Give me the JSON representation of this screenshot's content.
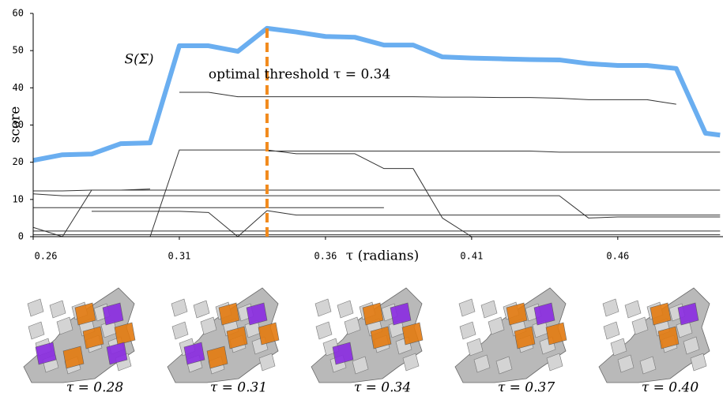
{
  "chart_data": {
    "type": "line",
    "x": [
      0.26,
      0.27,
      0.28,
      0.29,
      0.3,
      0.31,
      0.32,
      0.33,
      0.34,
      0.35,
      0.36,
      0.37,
      0.38,
      0.39,
      0.4,
      0.41,
      0.42,
      0.43,
      0.44,
      0.45,
      0.46,
      0.47,
      0.48,
      0.49,
      0.495
    ],
    "xlim": [
      0.26,
      0.496
    ],
    "xticks": [
      0.26,
      0.31,
      0.36,
      0.41,
      0.46
    ],
    "ylim": [
      0,
      60
    ],
    "yticks": [
      0,
      10,
      20,
      30,
      40,
      50,
      60
    ],
    "xlabel": "τ (radians)",
    "ylabel": "score",
    "series": [
      {
        "name": "S(Σ)",
        "color": "#6aaef0",
        "values": [
          20.5,
          22,
          22.2,
          25,
          25.2,
          51.3,
          51.3,
          49.8,
          56,
          55,
          53.8,
          53.6,
          51.5,
          51.5,
          48.3,
          48,
          47.8,
          47.6,
          47.5,
          46.5,
          46,
          46,
          45.2,
          27.8,
          27.3
        ]
      },
      {
        "color": "#333333",
        "values": [
          null,
          null,
          null,
          null,
          null,
          38.8,
          38.8,
          37.6,
          37.6,
          37.6,
          37.6,
          37.6,
          37.6,
          37.6,
          37.5,
          37.5,
          37.4,
          37.4,
          37.2,
          36.8,
          36.8,
          36.8,
          35.6,
          null,
          null
        ]
      },
      {
        "color": "#333333",
        "values": [
          null,
          null,
          null,
          null,
          0,
          23.3,
          23.3,
          23.3,
          23.3,
          22.3,
          22.3,
          22.3,
          18.3,
          18.3,
          5,
          0,
          null,
          null,
          null,
          null,
          null,
          null,
          null,
          null,
          null
        ]
      },
      {
        "color": "#333333",
        "values": [
          null,
          null,
          null,
          null,
          null,
          null,
          null,
          null,
          23,
          23,
          23,
          23,
          23,
          23,
          23,
          23,
          23,
          23,
          22.7,
          22.7,
          22.7,
          22.7,
          22.7,
          22.7,
          22.7
        ]
      },
      {
        "color": "#333333",
        "values": [
          12.3,
          12.3,
          12.5,
          12.5,
          12.5,
          12.5,
          12.5,
          12.5,
          12.5,
          12.5,
          12.5,
          12.5,
          12.5,
          12.5,
          12.5,
          12.5,
          12.5,
          12.5,
          12.5,
          12.5,
          12.5,
          12.5,
          12.5,
          12.5,
          12.5
        ]
      },
      {
        "color": "#333333",
        "values": [
          11.5,
          11,
          11,
          11,
          11,
          11,
          11,
          11,
          11,
          11,
          11,
          11,
          11,
          11,
          11,
          11,
          11,
          11,
          11,
          5,
          5.3,
          5.3,
          5.3,
          5.3,
          5.3
        ]
      },
      {
        "color": "#333333",
        "values": [
          7.8,
          7.8,
          7.8,
          7.8,
          7.8,
          7.8,
          7.8,
          7.8,
          7.8,
          7.8,
          7.8,
          7.8,
          7.8,
          null,
          null,
          null,
          null,
          null,
          null,
          null,
          null,
          null,
          null,
          null,
          null
        ]
      },
      {
        "color": "#333333",
        "values": [
          null,
          null,
          6.8,
          6.8,
          6.8,
          6.8,
          6.5,
          0,
          7,
          5.8,
          5.8,
          5.8,
          5.8,
          5.8,
          5.8,
          5.8,
          5.8,
          5.8,
          5.8,
          5.8,
          5.8,
          5.8,
          5.8,
          5.8,
          5.8
        ]
      },
      {
        "color": "#333333",
        "values": [
          2.5,
          0,
          12.5,
          12.5,
          12.8,
          null,
          null,
          null,
          null,
          null,
          null,
          null,
          null,
          null,
          null,
          null,
          null,
          null,
          null,
          null,
          null,
          null,
          null,
          null,
          null
        ]
      },
      {
        "color": "#333333",
        "values": [
          1.5,
          1.5,
          1.5,
          1.5,
          1.5,
          1.5,
          1.5,
          1.5,
          1.5,
          1.5,
          1.5,
          1.5,
          1.5,
          1.5,
          1.5,
          1.5,
          1.5,
          1.5,
          1.5,
          1.5,
          1.5,
          1.5,
          1.5,
          1.5,
          1.5
        ]
      },
      {
        "color": "#333333",
        "values": [
          0.5,
          0.5,
          0.5,
          0.5,
          0.5,
          0.5,
          0.5,
          0.5,
          0.5,
          0.5,
          0.5,
          0.5,
          0.5,
          0.5,
          0.5,
          0.5,
          0.5,
          0.5,
          0.5,
          0.5,
          0.5,
          0.5,
          0.5,
          0.5,
          0.5
        ]
      }
    ],
    "threshold": {
      "x": 0.34,
      "y": 56,
      "color": "#f28a1c",
      "label": "optimal threshold τ = 0.34"
    },
    "thumbnails": [
      {
        "label": "τ = 0.28"
      },
      {
        "label": "τ = 0.31"
      },
      {
        "label": "τ = 0.34"
      },
      {
        "label": "τ = 0.37"
      },
      {
        "label": "τ = 0.40"
      }
    ]
  }
}
